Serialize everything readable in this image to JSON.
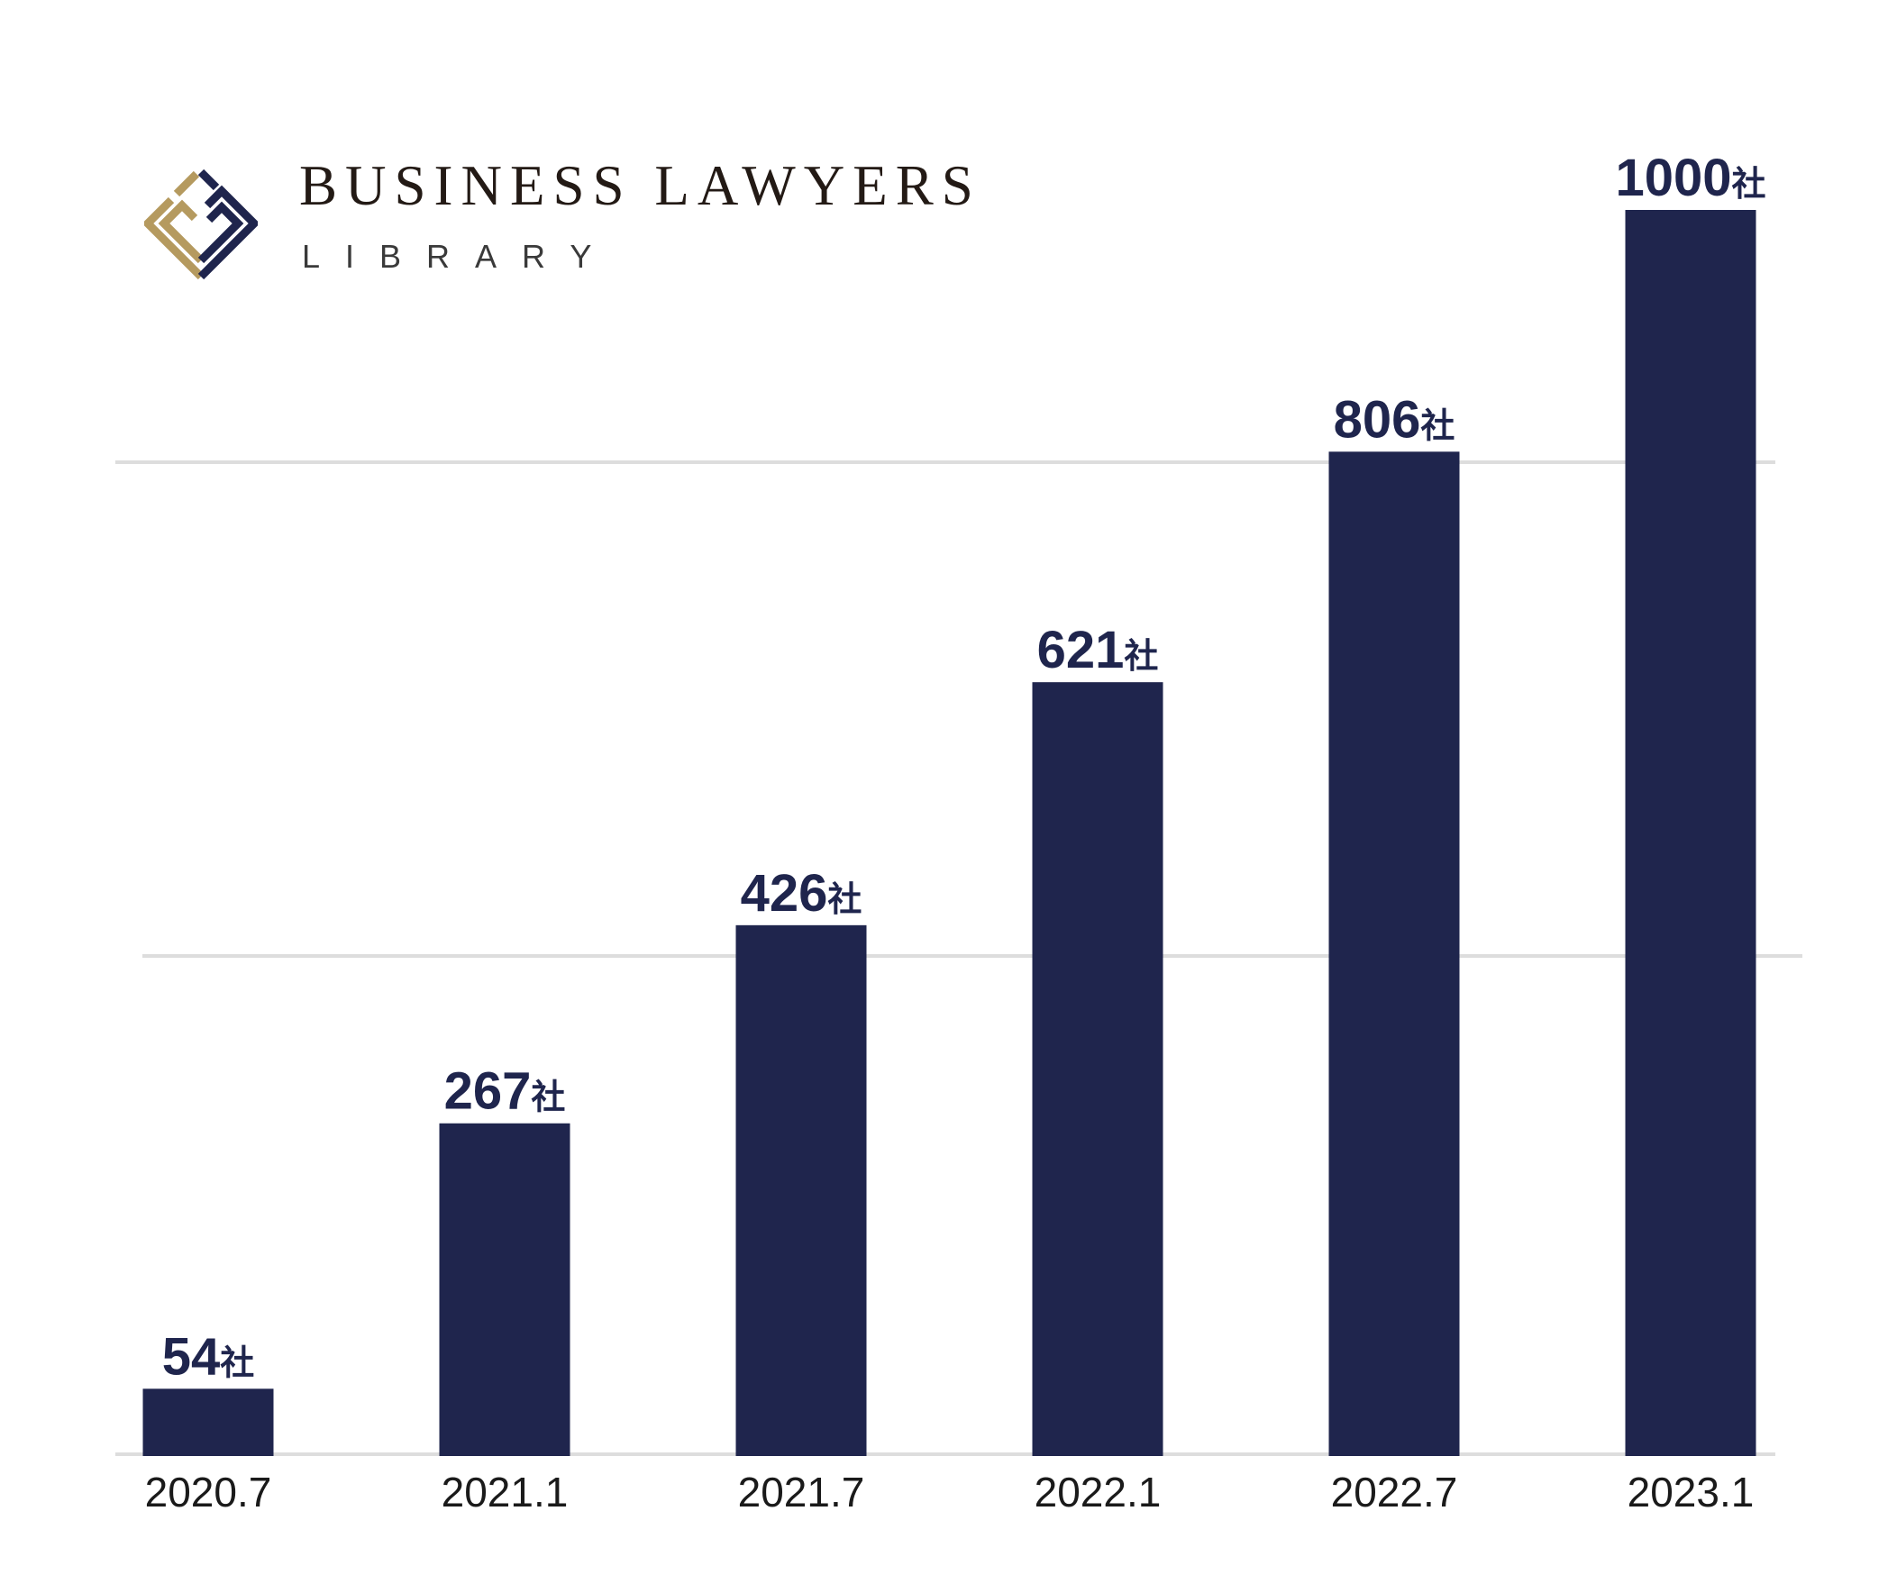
{
  "logo": {
    "title": "BUSINESS LAWYERS",
    "subtitle": "LIBRARY",
    "colors": {
      "gold": "#b59a5f",
      "navy": "#1f254d",
      "text": "#231a15"
    },
    "icon": "diamond-logo-icon"
  },
  "chart_data": {
    "type": "bar",
    "categories": [
      "2020.7",
      "2021.1",
      "2021.7",
      "2022.1",
      "2022.7",
      "2023.1"
    ],
    "values": [
      54,
      267,
      426,
      621,
      806,
      1000
    ],
    "value_suffix": "社",
    "title": "",
    "xlabel": "",
    "ylabel": "",
    "ylim": [
      0,
      1000
    ],
    "gridlines": [
      0,
      500,
      1000
    ],
    "grid": true,
    "legend": false,
    "colors": {
      "bar": "#1f254d",
      "label": "#1f254d",
      "tick": "#1a1a1a",
      "grid": "#dddddd"
    }
  }
}
